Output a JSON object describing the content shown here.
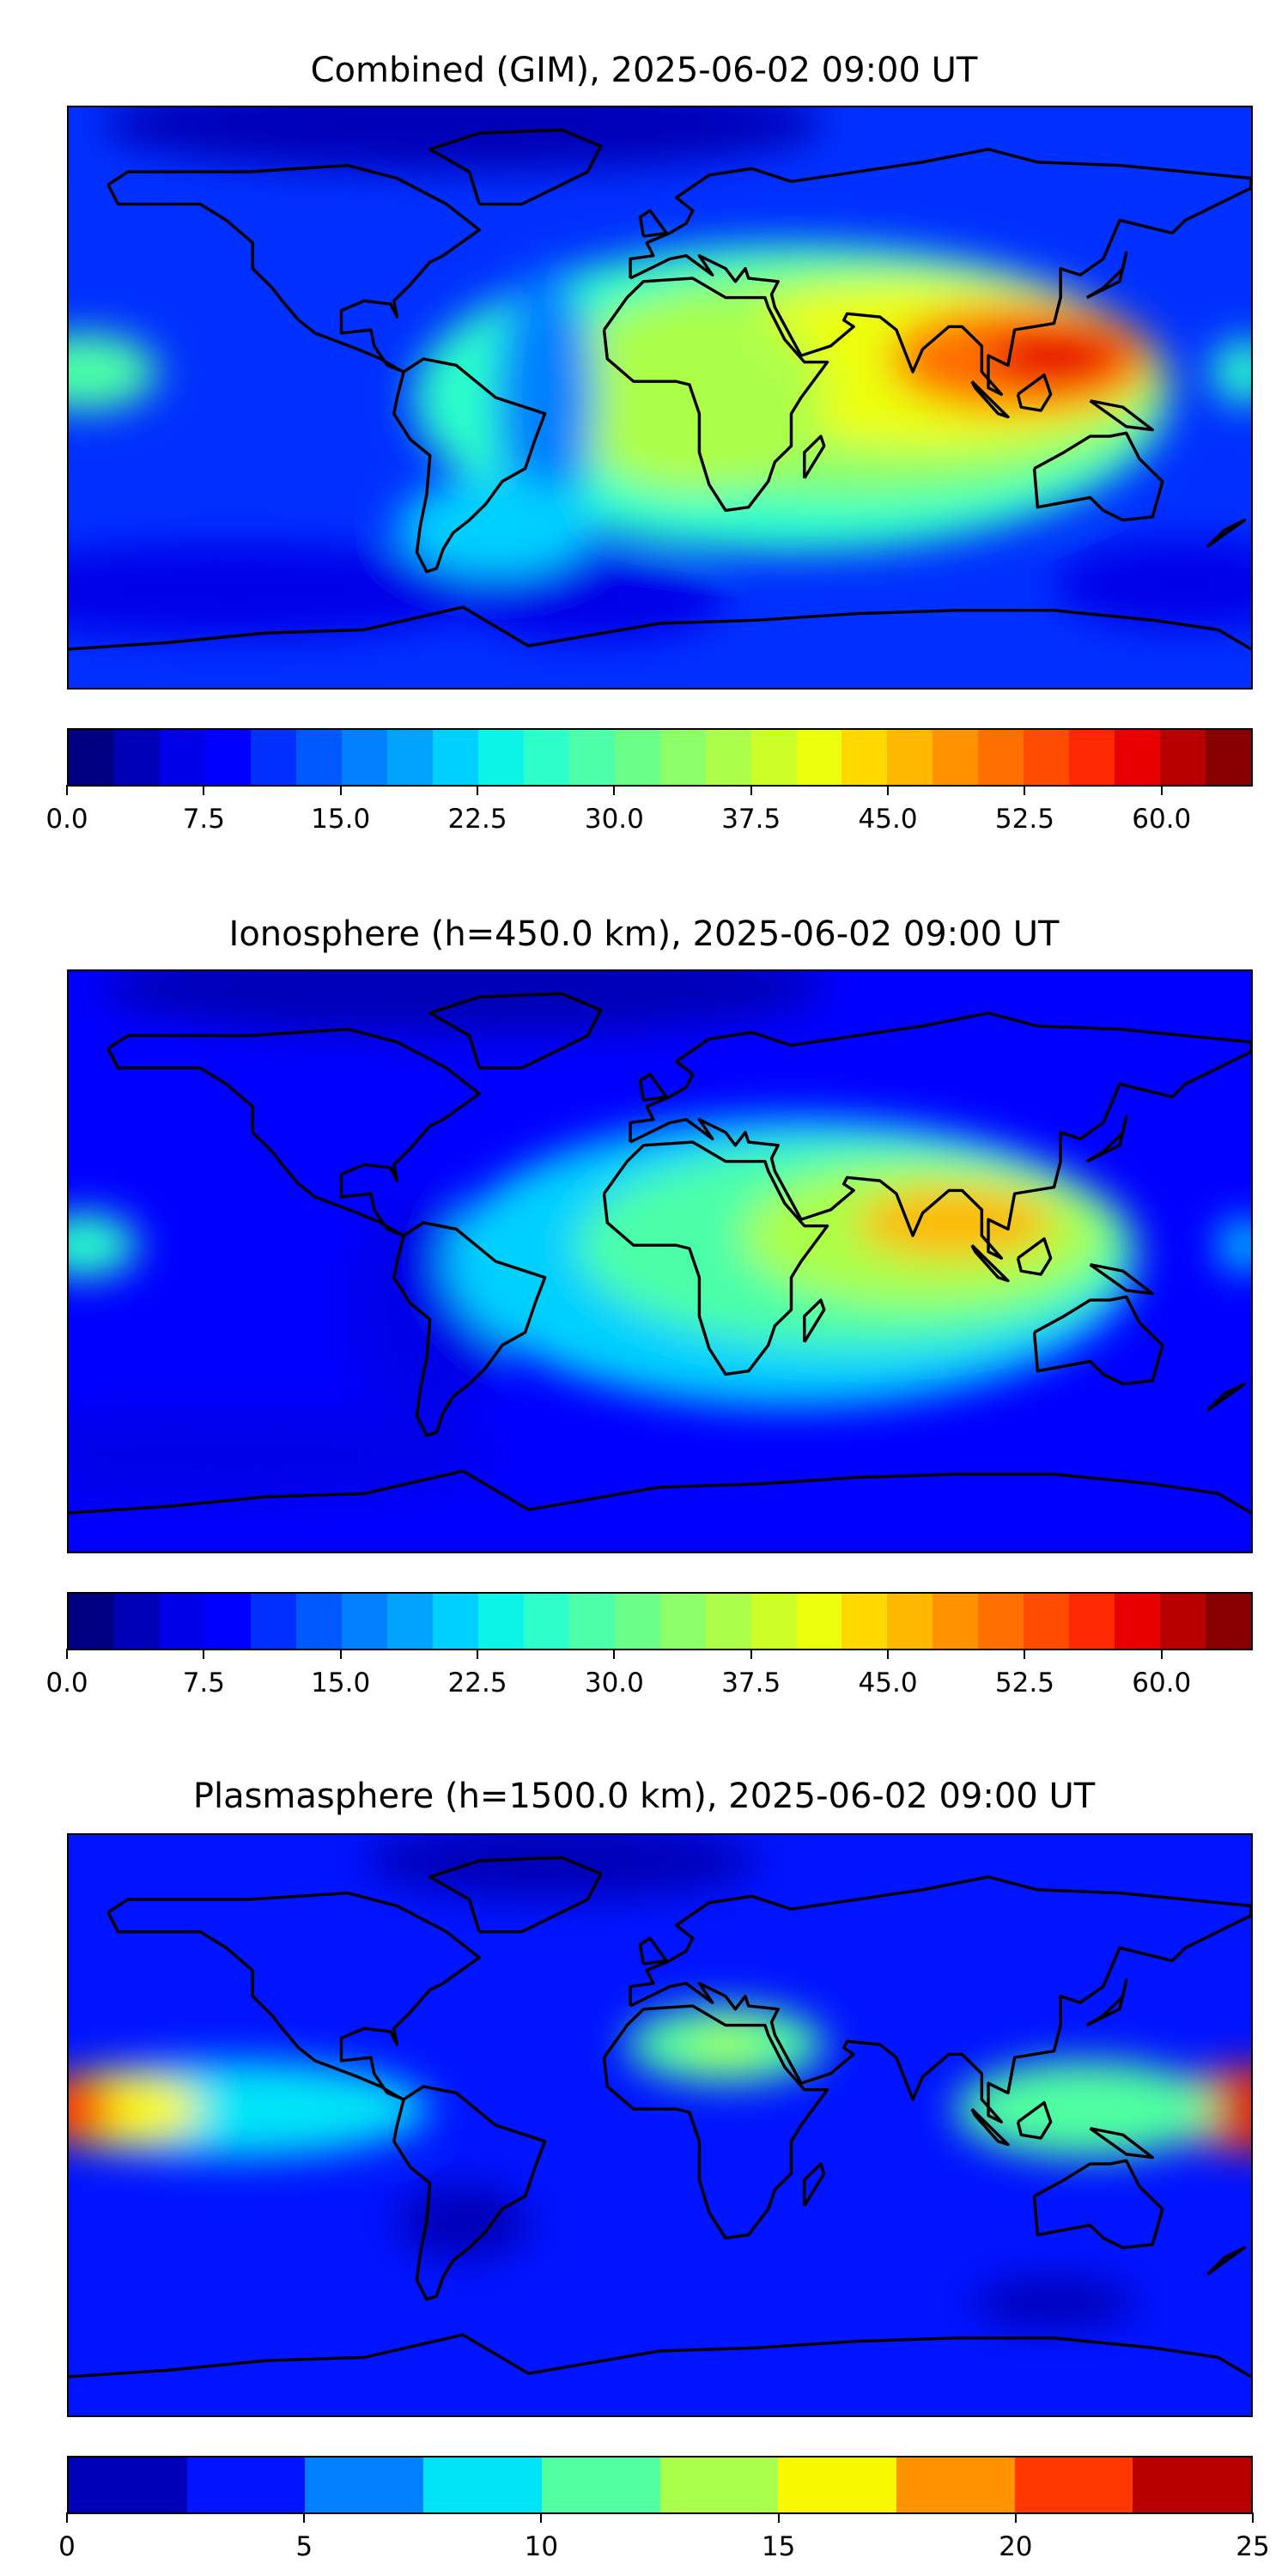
{
  "chart_data": [
    {
      "type": "heatmap",
      "title": "Combined (GIM), 2025-06-02 09:00 UT",
      "projection": "plate-carree",
      "lon_range": [
        -180,
        180
      ],
      "lat_range": [
        -90,
        90
      ],
      "colorbar": {
        "range": [
          0,
          65
        ],
        "step": 2.5,
        "ticks": [
          "0.0",
          "7.5",
          "15.0",
          "22.5",
          "30.0",
          "37.5",
          "45.0",
          "52.5",
          "60.0"
        ],
        "tick_values": [
          0,
          7.5,
          15,
          22.5,
          30,
          37.5,
          45,
          52.5,
          60
        ],
        "colors": [
          "#000080",
          "#0000b8",
          "#0000e8",
          "#0000ff",
          "#0030ff",
          "#0058ff",
          "#0080ff",
          "#00a4ff",
          "#00d0ff",
          "#0cf4e8",
          "#2cffca",
          "#4cffa8",
          "#6cff88",
          "#8cff68",
          "#acff48",
          "#ccff28",
          "#ecff0c",
          "#ffd800",
          "#ffb800",
          "#ff9400",
          "#ff7000",
          "#ff4c00",
          "#ff2800",
          "#e80000",
          "#b80000",
          "#8a0000"
        ]
      }
    },
    {
      "type": "heatmap",
      "title": "Ionosphere  (h=450.0 km), 2025-06-02 09:00 UT",
      "projection": "plate-carree",
      "lon_range": [
        -180,
        180
      ],
      "lat_range": [
        -90,
        90
      ],
      "colorbar": {
        "range": [
          0,
          65
        ],
        "step": 2.5,
        "ticks": [
          "0.0",
          "7.5",
          "15.0",
          "22.5",
          "30.0",
          "37.5",
          "45.0",
          "52.5",
          "60.0"
        ],
        "tick_values": [
          0,
          7.5,
          15,
          22.5,
          30,
          37.5,
          45,
          52.5,
          60
        ],
        "colors": [
          "#000080",
          "#0000b8",
          "#0000e8",
          "#0000ff",
          "#0030ff",
          "#0058ff",
          "#0080ff",
          "#00a4ff",
          "#00d0ff",
          "#0cf4e8",
          "#2cffca",
          "#4cffa8",
          "#6cff88",
          "#8cff68",
          "#acff48",
          "#ccff28",
          "#ecff0c",
          "#ffd800",
          "#ffb800",
          "#ff9400",
          "#ff7000",
          "#ff4c00",
          "#ff2800",
          "#e80000",
          "#b80000",
          "#8a0000"
        ]
      }
    },
    {
      "type": "heatmap",
      "title": "Plasmasphere (h=1500.0 km), 2025-06-02 09:00 UT",
      "projection": "plate-carree",
      "lon_range": [
        -180,
        180
      ],
      "lat_range": [
        -90,
        90
      ],
      "colorbar": {
        "range": [
          0,
          25
        ],
        "step": 2.5,
        "ticks": [
          "0",
          "5",
          "10",
          "15",
          "20",
          "25"
        ],
        "tick_values": [
          0,
          5,
          10,
          15,
          20,
          25
        ],
        "colors": [
          "#0000b8",
          "#0014ff",
          "#0080ff",
          "#00e4f8",
          "#50ffa0",
          "#a8ff4c",
          "#f8f800",
          "#ff9400",
          "#ff3800",
          "#b80000"
        ]
      }
    }
  ]
}
